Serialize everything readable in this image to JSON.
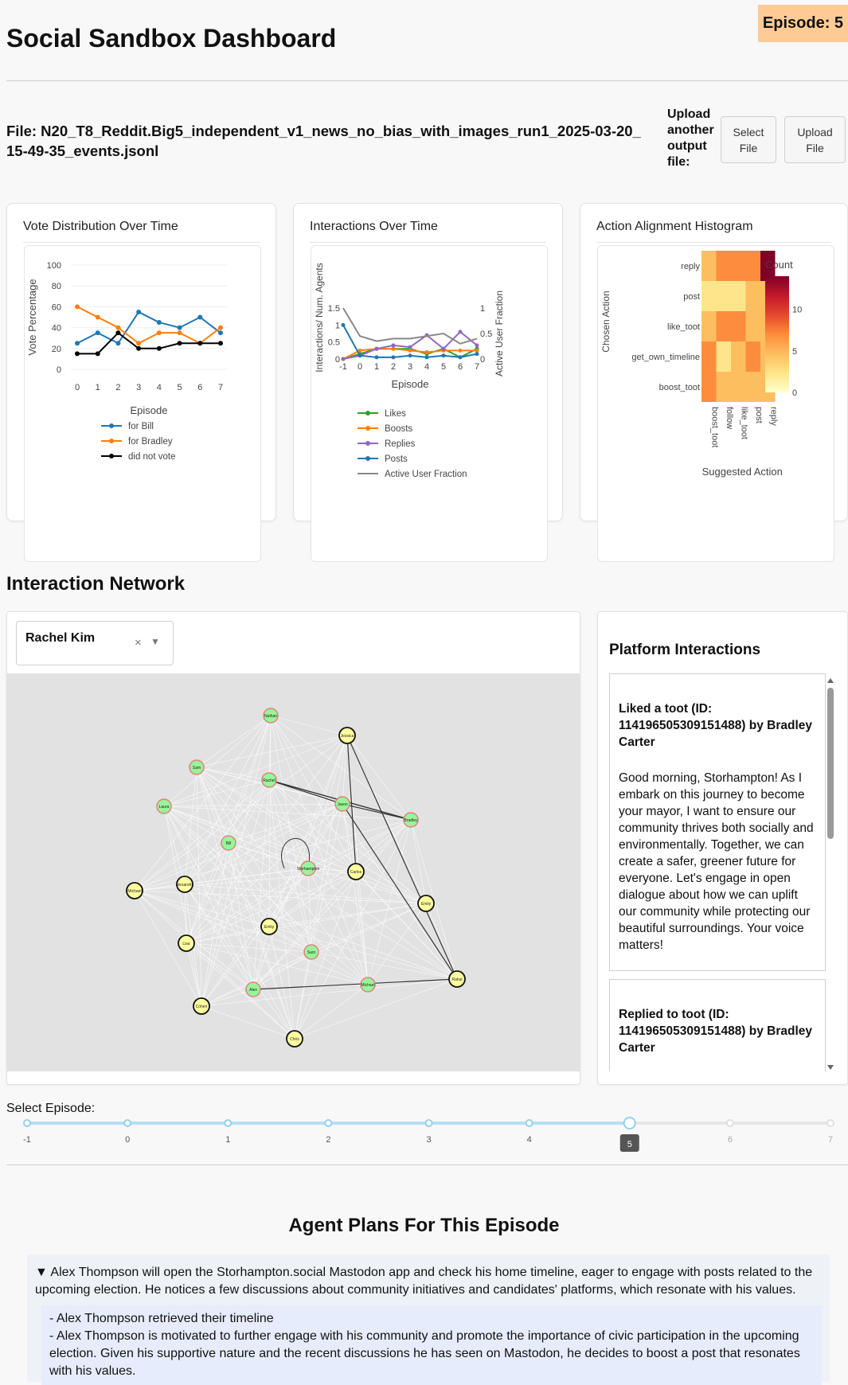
{
  "header": {
    "title": "Social Sandbox Dashboard",
    "episode_badge": "Episode: 5"
  },
  "file": {
    "label": "File: N20_T8_Reddit.Big5_independent_v1_news_no_bias_with_images_run1_2025-03-20_15-49-35_events.jsonl",
    "upload_text": "Upload another output file:",
    "select_button": "Select File",
    "upload_button": "Upload File"
  },
  "cards": {
    "vote_title": "Vote Distribution Over Time",
    "interactions_title": "Interactions Over Time",
    "alignment_title": "Action Alignment Histogram"
  },
  "chart_data": [
    {
      "type": "line",
      "title": "Vote Distribution Over Time",
      "xlabel": "Episode",
      "ylabel": "Vote Percentage",
      "x": [
        0,
        1,
        2,
        3,
        4,
        5,
        6,
        7
      ],
      "y_ticks": [
        0,
        20,
        40,
        60,
        80,
        100
      ],
      "ylim": [
        0,
        100
      ],
      "series": [
        {
          "name": "for Bill",
          "color": "#1f77b4",
          "values": [
            25,
            35,
            25,
            55,
            45,
            40,
            50,
            35
          ]
        },
        {
          "name": "for Bradley",
          "color": "#ff7f0e",
          "values": [
            60,
            50,
            40,
            25,
            35,
            35,
            25,
            40
          ]
        },
        {
          "name": "did not vote",
          "color": "#000000",
          "values": [
            15,
            15,
            35,
            20,
            20,
            25,
            25,
            25
          ]
        }
      ]
    },
    {
      "type": "line",
      "title": "Interactions Over Time",
      "xlabel": "Episode",
      "ylabel": "Interactions/ Num. Agents",
      "ylabel_right": "Active User Fraction",
      "x": [
        -1,
        0,
        1,
        2,
        3,
        4,
        5,
        6,
        7
      ],
      "y_ticks": [
        "0",
        "0.5",
        "1",
        "1.5"
      ],
      "y_ticks_right": [
        "0",
        "0.5",
        "1"
      ],
      "series": [
        {
          "name": "Likes",
          "color": "#2ca02c",
          "values": [
            0,
            0.15,
            0.3,
            0.3,
            0.3,
            0.15,
            0.3,
            0.05,
            0.3
          ]
        },
        {
          "name": "Boosts",
          "color": "#ff7f0e",
          "values": [
            0,
            0.25,
            0.3,
            0.3,
            0.25,
            0.2,
            0.25,
            0.25,
            0.25
          ]
        },
        {
          "name": "Replies",
          "color": "#9467bd",
          "values": [
            0,
            0.1,
            0.3,
            0.4,
            0.35,
            0.7,
            0.3,
            0.8,
            0.4
          ]
        },
        {
          "name": "Posts",
          "color": "#1f77b4",
          "values": [
            1.0,
            0.1,
            0.05,
            0.05,
            0.1,
            0.05,
            0.1,
            0.05,
            0.15
          ]
        },
        {
          "name": "Active User Fraction",
          "color": "#888888",
          "axis": "right",
          "values": [
            1.0,
            0.45,
            0.35,
            0.4,
            0.4,
            0.45,
            0.5,
            0.3,
            0.4
          ]
        }
      ]
    },
    {
      "type": "heatmap",
      "title": "Action Alignment Histogram",
      "xlabel": "Suggested Action",
      "ylabel": "Chosen Action",
      "colorbar_label": "Count",
      "colorbar_ticks": [
        0,
        5,
        10
      ],
      "x_categories": [
        "boost_toot",
        "follow",
        "like_toot",
        "post",
        "reply"
      ],
      "y_categories": [
        "reply",
        "post",
        "like_toot",
        "get_own_timeline",
        "boost_toot"
      ],
      "values": [
        [
          4,
          6,
          6,
          6,
          14
        ],
        [
          2,
          3,
          3,
          4,
          4
        ],
        [
          4,
          8,
          6,
          4,
          4
        ],
        [
          6,
          3,
          4,
          8,
          4
        ],
        [
          8,
          4,
          4,
          4,
          4
        ]
      ]
    }
  ],
  "network": {
    "section_title": "Interaction Network",
    "selected_agent": "Rachel Kim",
    "nodes": [
      {
        "name": "Nathan",
        "kind": "green"
      },
      {
        "name": "Jessica",
        "kind": "yellow"
      },
      {
        "name": "Sam",
        "kind": "green"
      },
      {
        "name": "Rachel",
        "kind": "green"
      },
      {
        "name": "Jason",
        "kind": "green"
      },
      {
        "name": "Bradley",
        "kind": "green"
      },
      {
        "name": "Laura",
        "kind": "green"
      },
      {
        "name": "Bill",
        "kind": "green"
      },
      {
        "name": "Storhampton",
        "kind": "green"
      },
      {
        "name": "Carlos",
        "kind": "yellow"
      },
      {
        "name": "Michael",
        "kind": "yellow"
      },
      {
        "name": "Alexandra",
        "kind": "yellow"
      },
      {
        "name": "Emily",
        "kind": "yellow"
      },
      {
        "name": "Emily",
        "kind": "yellow"
      },
      {
        "name": "Lisa",
        "kind": "yellow"
      },
      {
        "name": "Sam",
        "kind": "green"
      },
      {
        "name": "Alex",
        "kind": "green"
      },
      {
        "name": "Michael",
        "kind": "green"
      },
      {
        "name": "Rahul",
        "kind": "yellow"
      },
      {
        "name": "Cohen",
        "kind": "yellow"
      },
      {
        "name": "Chris",
        "kind": "yellow"
      }
    ]
  },
  "platform": {
    "title": "Platform Interactions",
    "items": [
      {
        "heading": "Liked a toot (ID: 114196505309151488) by Bradley Carter",
        "body": "Good morning, Storhampton! As I embark on this journey to become your mayor, I want to ensure our community thrives both socially and environmentally. Together, we can create a safer, greener future for everyone. Let's engage in open dialogue about how we can uplift our community while protecting our beautiful surroundings. Your voice matters!"
      },
      {
        "heading": "Replied to toot (ID: 114196505309151488) by Bradley Carter",
        "body": ""
      }
    ]
  },
  "slider": {
    "label": "Select Episode:",
    "ticks": [
      "-1",
      "0",
      "1",
      "2",
      "3",
      "4",
      "5",
      "6",
      "7"
    ],
    "selected": "5"
  },
  "plans": {
    "title": "Agent Plans For This Episode",
    "summary": "Alex Thompson will open the Storhampton.social Mastodon app and check his home timeline, eager to engage with posts related to the upcoming election. He notices a few discussions about community initiatives and candidates' platforms, which resonate with his values.",
    "details": [
      "- Alex Thompson retrieved their timeline",
      "- Alex Thompson is motivated to further engage with his community and promote the importance of civic participation in the upcoming election. Given his supportive nature and the recent discussions he has seen on Mastodon, he decides to boost a post that resonates with his values."
    ]
  }
}
